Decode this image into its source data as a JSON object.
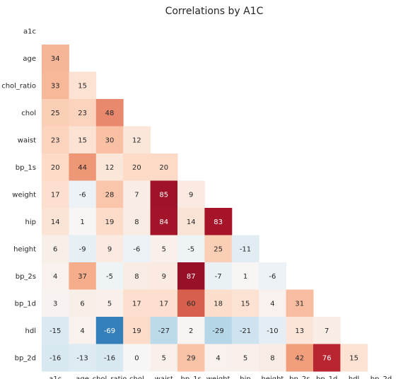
{
  "chart_data": {
    "type": "heatmap",
    "title": "Correlations by A1C",
    "labels": [
      "a1c",
      "age",
      "chol_ratio",
      "chol",
      "waist",
      "bp_1s",
      "weight",
      "hip",
      "height",
      "bp_2s",
      "bp_1d",
      "hdl",
      "bp_2d"
    ],
    "values": [
      [],
      [
        34
      ],
      [
        33,
        15
      ],
      [
        25,
        23,
        48
      ],
      [
        23,
        15,
        30,
        12
      ],
      [
        20,
        44,
        12,
        20,
        20
      ],
      [
        17,
        -6,
        28,
        7,
        85,
        9
      ],
      [
        14,
        1,
        19,
        8,
        84,
        14,
        83
      ],
      [
        6,
        -9,
        9,
        -6,
        5,
        -5,
        25,
        -11
      ],
      [
        4,
        37,
        -5,
        8,
        9,
        87,
        -7,
        1,
        -6
      ],
      [
        3,
        6,
        5,
        17,
        17,
        60,
        18,
        15,
        4,
        31
      ],
      [
        -15,
        4,
        -69,
        19,
        -27,
        2,
        -29,
        -21,
        -10,
        13,
        7
      ],
      [
        -16,
        -13,
        -16,
        0,
        5,
        29,
        4,
        5,
        8,
        42,
        76,
        15
      ]
    ],
    "color_range": [
      -100,
      100
    ],
    "colormap": "RdBu_r",
    "triangle": "lower",
    "grid": false,
    "legend": "none"
  }
}
